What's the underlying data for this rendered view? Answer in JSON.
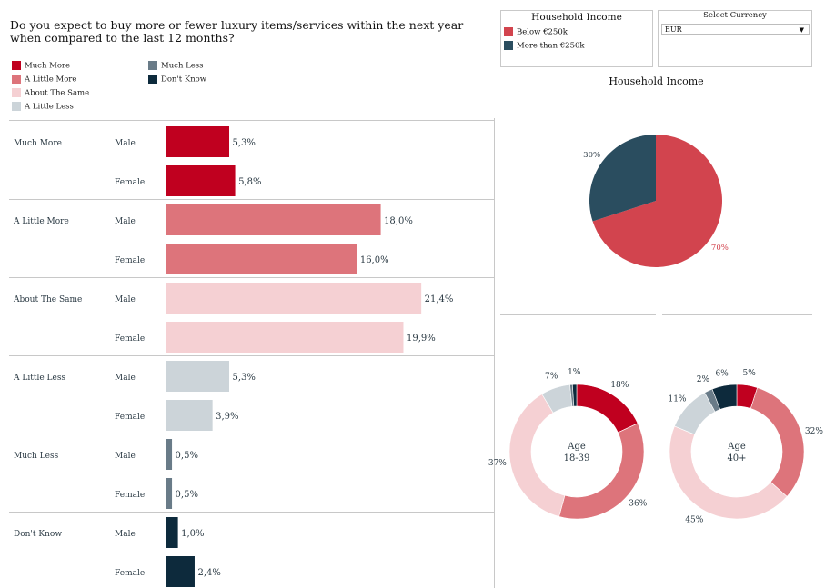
{
  "question": "Do you expect to buy more or fewer luxury items/services within the next year when compared to the last 12 months?",
  "legend": [
    {
      "label": "Much More",
      "color": "#c0001f"
    },
    {
      "label": "A Little More",
      "color": "#dd747b"
    },
    {
      "label": "About The Same",
      "color": "#f5d0d3"
    },
    {
      "label": "A Little Less",
      "color": "#ccd4d9"
    },
    {
      "label": "Much Less",
      "color": "#697b88"
    },
    {
      "label": "Don't Know",
      "color": "#0d2a3c"
    }
  ],
  "household_filter": {
    "title": "Household Income",
    "items": [
      {
        "label": "Below €250k",
        "color": "#d2444e"
      },
      {
        "label": "More than €250k",
        "color": "#2a4d5f"
      }
    ]
  },
  "currency_filter": {
    "title": "Select Currency",
    "value": "EUR"
  },
  "household_section_title": "Household Income",
  "chart_data": [
    {
      "type": "bar",
      "orientation": "horizontal",
      "title": "Do you expect to buy more or fewer luxury items/services within the next year when compared to the last 12 months?",
      "categories": [
        "Much More",
        "A Little More",
        "About The Same",
        "A Little Less",
        "Much Less",
        "Don't Know"
      ],
      "subcategories": [
        "Male",
        "Female"
      ],
      "value_suffix": "%",
      "decimal_separator": ",",
      "series": [
        {
          "name": "Male",
          "values": [
            5.3,
            18.0,
            21.4,
            5.3,
            0.5,
            1.0
          ]
        },
        {
          "name": "Female",
          "values": [
            5.8,
            16.0,
            19.9,
            3.9,
            0.5,
            2.4
          ]
        }
      ],
      "xlim": [
        0,
        24.4
      ]
    },
    {
      "type": "pie",
      "title": "Household Income",
      "labels": [
        "Below €250k",
        "More than €250k"
      ],
      "values": [
        70,
        30
      ],
      "colors": [
        "#d2444e",
        "#2a4d5f"
      ],
      "label_colors": [
        "#d2444e",
        "#2b3a44"
      ]
    },
    {
      "type": "pie",
      "donut": true,
      "center_label": [
        "Age",
        "18-39"
      ],
      "labels": [
        "Much More",
        "A Little More",
        "About The Same",
        "A Little Less",
        "Much Less",
        "Don't Know"
      ],
      "values": [
        18,
        36,
        37,
        7,
        0.6,
        1
      ],
      "display": [
        "18%",
        "36%",
        "37%",
        "7%",
        "",
        "1%"
      ]
    },
    {
      "type": "pie",
      "donut": true,
      "center_label": [
        "Age",
        "40+"
      ],
      "labels": [
        "Much More",
        "A Little More",
        "About The Same",
        "A Little Less",
        "Much Less",
        "Don't Know"
      ],
      "values": [
        5,
        32,
        45,
        11,
        2,
        6
      ],
      "display": [
        "5%",
        "32%",
        "45%",
        "11%",
        "2%",
        "6%"
      ]
    }
  ]
}
